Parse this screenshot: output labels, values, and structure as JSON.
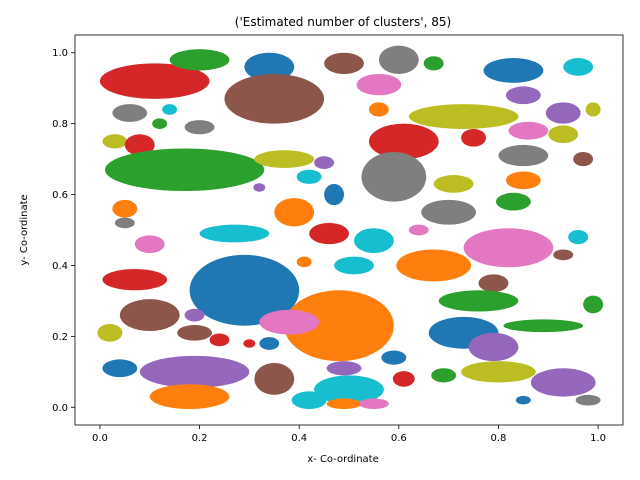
{
  "chart_data": {
    "type": "scatter",
    "title": "('Estimated number of clusters', 85)",
    "xlabel": "x- Co-ordinate",
    "ylabel": "y- Co-ordinate",
    "xlim": [
      -0.05,
      1.05
    ],
    "ylim": [
      -0.05,
      1.05
    ],
    "xticks": [
      "0.0",
      "0.2",
      "0.4",
      "0.6",
      "0.8",
      "1.0"
    ],
    "yticks": [
      "0.0",
      "0.2",
      "0.4",
      "0.6",
      "0.8",
      "1.0"
    ],
    "xtick_values": [
      0.0,
      0.2,
      0.4,
      0.6,
      0.8,
      1.0
    ],
    "ytick_values": [
      0.0,
      0.2,
      0.4,
      0.6,
      0.8,
      1.0
    ],
    "grid": false,
    "legend": "none",
    "palette": [
      "#1f77b4",
      "#ff7f0e",
      "#2ca02c",
      "#d62728",
      "#9467bd",
      "#8c564b",
      "#e377c2",
      "#7f7f7f",
      "#bcbd22",
      "#17becf"
    ],
    "clusters": [
      {
        "cx": 0.11,
        "cy": 0.92,
        "rx": 0.11,
        "ry": 0.05,
        "color": "#d62728"
      },
      {
        "cx": 0.2,
        "cy": 0.98,
        "rx": 0.06,
        "ry": 0.03,
        "color": "#2ca02c"
      },
      {
        "cx": 0.34,
        "cy": 0.96,
        "rx": 0.05,
        "ry": 0.04,
        "color": "#1f77b4"
      },
      {
        "cx": 0.35,
        "cy": 0.87,
        "rx": 0.1,
        "ry": 0.07,
        "color": "#8c564b"
      },
      {
        "cx": 0.49,
        "cy": 0.97,
        "rx": 0.04,
        "ry": 0.03,
        "color": "#8c564b"
      },
      {
        "cx": 0.6,
        "cy": 0.98,
        "rx": 0.04,
        "ry": 0.04,
        "color": "#7f7f7f"
      },
      {
        "cx": 0.67,
        "cy": 0.97,
        "rx": 0.02,
        "ry": 0.02,
        "color": "#2ca02c"
      },
      {
        "cx": 0.56,
        "cy": 0.91,
        "rx": 0.045,
        "ry": 0.03,
        "color": "#e377c2"
      },
      {
        "cx": 0.83,
        "cy": 0.95,
        "rx": 0.06,
        "ry": 0.035,
        "color": "#1f77b4"
      },
      {
        "cx": 0.96,
        "cy": 0.96,
        "rx": 0.03,
        "ry": 0.025,
        "color": "#17becf"
      },
      {
        "cx": 0.85,
        "cy": 0.88,
        "rx": 0.035,
        "ry": 0.025,
        "color": "#9467bd"
      },
      {
        "cx": 0.06,
        "cy": 0.83,
        "rx": 0.035,
        "ry": 0.025,
        "color": "#7f7f7f"
      },
      {
        "cx": 0.14,
        "cy": 0.84,
        "rx": 0.015,
        "ry": 0.015,
        "color": "#17becf"
      },
      {
        "cx": 0.12,
        "cy": 0.8,
        "rx": 0.015,
        "ry": 0.015,
        "color": "#2ca02c"
      },
      {
        "cx": 0.2,
        "cy": 0.79,
        "rx": 0.03,
        "ry": 0.02,
        "color": "#7f7f7f"
      },
      {
        "cx": 0.56,
        "cy": 0.84,
        "rx": 0.02,
        "ry": 0.02,
        "color": "#ff7f0e"
      },
      {
        "cx": 0.73,
        "cy": 0.82,
        "rx": 0.11,
        "ry": 0.035,
        "color": "#bcbd22"
      },
      {
        "cx": 0.93,
        "cy": 0.83,
        "rx": 0.035,
        "ry": 0.03,
        "color": "#9467bd"
      },
      {
        "cx": 0.99,
        "cy": 0.84,
        "rx": 0.015,
        "ry": 0.02,
        "color": "#bcbd22"
      },
      {
        "cx": 0.86,
        "cy": 0.78,
        "rx": 0.04,
        "ry": 0.025,
        "color": "#e377c2"
      },
      {
        "cx": 0.93,
        "cy": 0.77,
        "rx": 0.03,
        "ry": 0.025,
        "color": "#bcbd22"
      },
      {
        "cx": 0.03,
        "cy": 0.75,
        "rx": 0.025,
        "ry": 0.02,
        "color": "#bcbd22"
      },
      {
        "cx": 0.08,
        "cy": 0.74,
        "rx": 0.03,
        "ry": 0.03,
        "color": "#d62728"
      },
      {
        "cx": 0.61,
        "cy": 0.75,
        "rx": 0.07,
        "ry": 0.05,
        "color": "#d62728"
      },
      {
        "cx": 0.75,
        "cy": 0.76,
        "rx": 0.025,
        "ry": 0.025,
        "color": "#d62728"
      },
      {
        "cx": 0.85,
        "cy": 0.71,
        "rx": 0.05,
        "ry": 0.03,
        "color": "#7f7f7f"
      },
      {
        "cx": 0.97,
        "cy": 0.7,
        "rx": 0.02,
        "ry": 0.02,
        "color": "#8c564b"
      },
      {
        "cx": 0.17,
        "cy": 0.67,
        "rx": 0.16,
        "ry": 0.06,
        "color": "#2ca02c"
      },
      {
        "cx": 0.37,
        "cy": 0.7,
        "rx": 0.06,
        "ry": 0.025,
        "color": "#bcbd22"
      },
      {
        "cx": 0.45,
        "cy": 0.69,
        "rx": 0.02,
        "ry": 0.018,
        "color": "#9467bd"
      },
      {
        "cx": 0.42,
        "cy": 0.65,
        "rx": 0.025,
        "ry": 0.02,
        "color": "#17becf"
      },
      {
        "cx": 0.32,
        "cy": 0.62,
        "rx": 0.012,
        "ry": 0.012,
        "color": "#9467bd"
      },
      {
        "cx": 0.59,
        "cy": 0.65,
        "rx": 0.065,
        "ry": 0.07,
        "color": "#7f7f7f"
      },
      {
        "cx": 0.71,
        "cy": 0.63,
        "rx": 0.04,
        "ry": 0.025,
        "color": "#bcbd22"
      },
      {
        "cx": 0.85,
        "cy": 0.64,
        "rx": 0.035,
        "ry": 0.025,
        "color": "#ff7f0e"
      },
      {
        "cx": 0.05,
        "cy": 0.56,
        "rx": 0.025,
        "ry": 0.025,
        "color": "#ff7f0e"
      },
      {
        "cx": 0.05,
        "cy": 0.52,
        "rx": 0.02,
        "ry": 0.015,
        "color": "#7f7f7f"
      },
      {
        "cx": 0.39,
        "cy": 0.55,
        "rx": 0.04,
        "ry": 0.04,
        "color": "#ff7f0e"
      },
      {
        "cx": 0.47,
        "cy": 0.6,
        "rx": 0.02,
        "ry": 0.03,
        "color": "#1f77b4"
      },
      {
        "cx": 0.7,
        "cy": 0.55,
        "rx": 0.055,
        "ry": 0.035,
        "color": "#7f7f7f"
      },
      {
        "cx": 0.83,
        "cy": 0.58,
        "rx": 0.035,
        "ry": 0.025,
        "color": "#2ca02c"
      },
      {
        "cx": 0.27,
        "cy": 0.49,
        "rx": 0.07,
        "ry": 0.025,
        "color": "#17becf"
      },
      {
        "cx": 0.46,
        "cy": 0.49,
        "rx": 0.04,
        "ry": 0.03,
        "color": "#d62728"
      },
      {
        "cx": 0.55,
        "cy": 0.47,
        "rx": 0.04,
        "ry": 0.035,
        "color": "#17becf"
      },
      {
        "cx": 0.64,
        "cy": 0.5,
        "rx": 0.02,
        "ry": 0.015,
        "color": "#e377c2"
      },
      {
        "cx": 0.82,
        "cy": 0.45,
        "rx": 0.09,
        "ry": 0.055,
        "color": "#e377c2"
      },
      {
        "cx": 0.96,
        "cy": 0.48,
        "rx": 0.02,
        "ry": 0.02,
        "color": "#17becf"
      },
      {
        "cx": 0.93,
        "cy": 0.43,
        "rx": 0.02,
        "ry": 0.015,
        "color": "#8c564b"
      },
      {
        "cx": 0.1,
        "cy": 0.46,
        "rx": 0.03,
        "ry": 0.025,
        "color": "#e377c2"
      },
      {
        "cx": 0.51,
        "cy": 0.4,
        "rx": 0.04,
        "ry": 0.025,
        "color": "#17becf"
      },
      {
        "cx": 0.41,
        "cy": 0.41,
        "rx": 0.015,
        "ry": 0.015,
        "color": "#ff7f0e"
      },
      {
        "cx": 0.67,
        "cy": 0.4,
        "rx": 0.075,
        "ry": 0.045,
        "color": "#ff7f0e"
      },
      {
        "cx": 0.79,
        "cy": 0.35,
        "rx": 0.03,
        "ry": 0.025,
        "color": "#8c564b"
      },
      {
        "cx": 0.07,
        "cy": 0.36,
        "rx": 0.065,
        "ry": 0.03,
        "color": "#d62728"
      },
      {
        "cx": 0.29,
        "cy": 0.33,
        "rx": 0.11,
        "ry": 0.1,
        "color": "#1f77b4"
      },
      {
        "cx": 0.1,
        "cy": 0.26,
        "rx": 0.06,
        "ry": 0.045,
        "color": "#8c564b"
      },
      {
        "cx": 0.19,
        "cy": 0.26,
        "rx": 0.02,
        "ry": 0.018,
        "color": "#9467bd"
      },
      {
        "cx": 0.48,
        "cy": 0.23,
        "rx": 0.11,
        "ry": 0.1,
        "color": "#ff7f0e"
      },
      {
        "cx": 0.38,
        "cy": 0.24,
        "rx": 0.06,
        "ry": 0.035,
        "color": "#e377c2"
      },
      {
        "cx": 0.76,
        "cy": 0.3,
        "rx": 0.08,
        "ry": 0.03,
        "color": "#2ca02c"
      },
      {
        "cx": 0.99,
        "cy": 0.29,
        "rx": 0.02,
        "ry": 0.025,
        "color": "#2ca02c"
      },
      {
        "cx": 0.02,
        "cy": 0.21,
        "rx": 0.025,
        "ry": 0.025,
        "color": "#bcbd22"
      },
      {
        "cx": 0.19,
        "cy": 0.21,
        "rx": 0.035,
        "ry": 0.022,
        "color": "#8c564b"
      },
      {
        "cx": 0.24,
        "cy": 0.19,
        "rx": 0.02,
        "ry": 0.018,
        "color": "#d62728"
      },
      {
        "cx": 0.3,
        "cy": 0.18,
        "rx": 0.012,
        "ry": 0.012,
        "color": "#d62728"
      },
      {
        "cx": 0.34,
        "cy": 0.18,
        "rx": 0.02,
        "ry": 0.018,
        "color": "#1f77b4"
      },
      {
        "cx": 0.73,
        "cy": 0.21,
        "rx": 0.07,
        "ry": 0.045,
        "color": "#1f77b4"
      },
      {
        "cx": 0.79,
        "cy": 0.17,
        "rx": 0.05,
        "ry": 0.04,
        "color": "#9467bd"
      },
      {
        "cx": 0.89,
        "cy": 0.23,
        "rx": 0.08,
        "ry": 0.018,
        "color": "#2ca02c"
      },
      {
        "cx": 0.59,
        "cy": 0.14,
        "rx": 0.025,
        "ry": 0.02,
        "color": "#1f77b4"
      },
      {
        "cx": 0.04,
        "cy": 0.11,
        "rx": 0.035,
        "ry": 0.025,
        "color": "#1f77b4"
      },
      {
        "cx": 0.19,
        "cy": 0.1,
        "rx": 0.11,
        "ry": 0.045,
        "color": "#9467bd"
      },
      {
        "cx": 0.35,
        "cy": 0.08,
        "rx": 0.04,
        "ry": 0.045,
        "color": "#8c564b"
      },
      {
        "cx": 0.49,
        "cy": 0.11,
        "rx": 0.035,
        "ry": 0.02,
        "color": "#9467bd"
      },
      {
        "cx": 0.61,
        "cy": 0.08,
        "rx": 0.022,
        "ry": 0.022,
        "color": "#d62728"
      },
      {
        "cx": 0.69,
        "cy": 0.09,
        "rx": 0.025,
        "ry": 0.02,
        "color": "#2ca02c"
      },
      {
        "cx": 0.8,
        "cy": 0.1,
        "rx": 0.075,
        "ry": 0.03,
        "color": "#bcbd22"
      },
      {
        "cx": 0.93,
        "cy": 0.07,
        "rx": 0.065,
        "ry": 0.04,
        "color": "#9467bd"
      },
      {
        "cx": 0.5,
        "cy": 0.05,
        "rx": 0.07,
        "ry": 0.04,
        "color": "#17becf"
      },
      {
        "cx": 0.18,
        "cy": 0.03,
        "rx": 0.08,
        "ry": 0.035,
        "color": "#ff7f0e"
      },
      {
        "cx": 0.42,
        "cy": 0.02,
        "rx": 0.035,
        "ry": 0.025,
        "color": "#17becf"
      },
      {
        "cx": 0.49,
        "cy": 0.01,
        "rx": 0.035,
        "ry": 0.015,
        "color": "#ff7f0e"
      },
      {
        "cx": 0.55,
        "cy": 0.01,
        "rx": 0.03,
        "ry": 0.015,
        "color": "#e377c2"
      },
      {
        "cx": 0.85,
        "cy": 0.02,
        "rx": 0.015,
        "ry": 0.012,
        "color": "#1f77b4"
      },
      {
        "cx": 0.98,
        "cy": 0.02,
        "rx": 0.025,
        "ry": 0.015,
        "color": "#7f7f7f"
      }
    ]
  }
}
